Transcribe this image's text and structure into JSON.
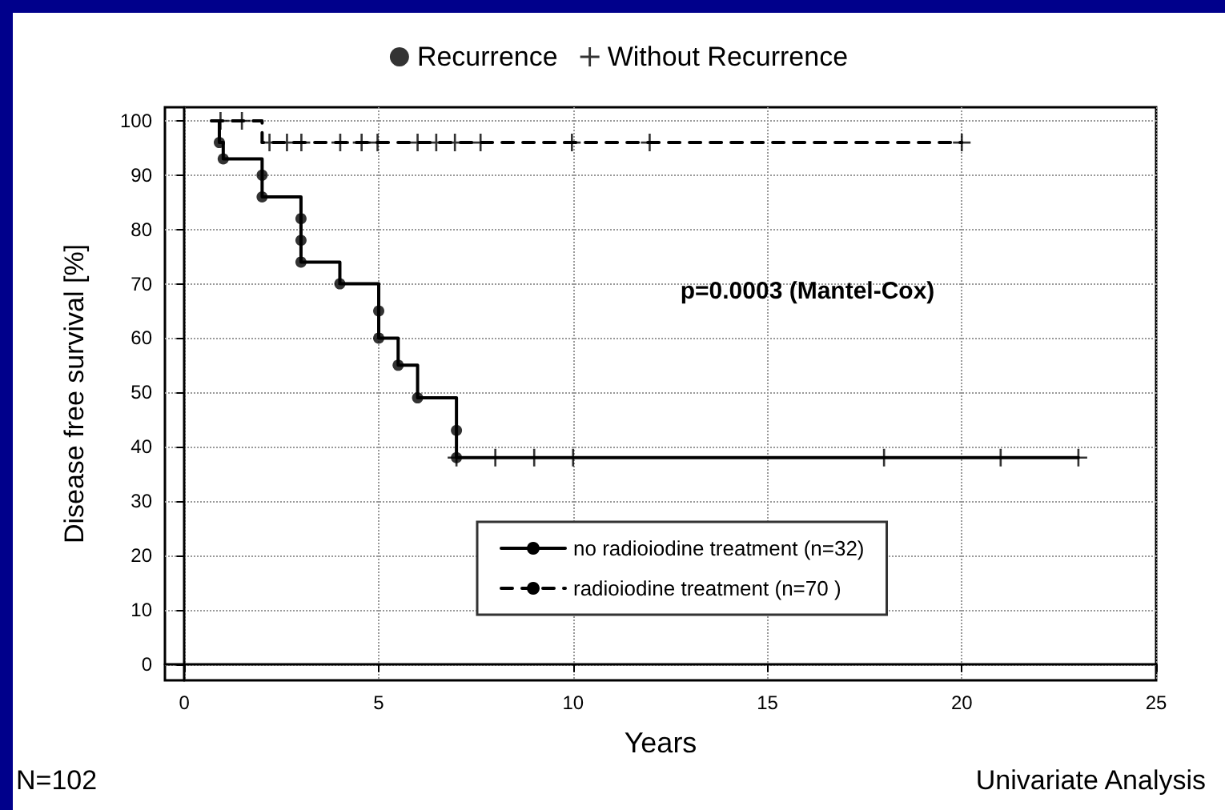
{
  "chart_data": {
    "type": "step",
    "xlabel": "Years",
    "ylabel": "Disease free survival [%]",
    "annotations": [
      "p=0.0003 (Mantel-Cox)",
      "N=102",
      "Univariate Analysis"
    ],
    "xlim": [
      -0.5,
      25
    ],
    "xticks": [
      0,
      5,
      10,
      15,
      20,
      25
    ],
    "ylim": [
      -3,
      102.5
    ],
    "yticks": [
      0,
      10,
      20,
      30,
      40,
      50,
      60,
      70,
      80,
      90,
      100
    ],
    "grid": true,
    "legend": "top",
    "series": [
      {
        "name": "no radioiodine treatment (n=32)",
        "color": "#000000",
        "line_style": "solid",
        "marker": "none",
        "x": [
          0.7,
          0.9,
          1,
          2,
          3,
          4,
          5,
          5.5,
          6,
          7,
          23
        ],
        "values": [
          100,
          96,
          93,
          86,
          74,
          70,
          60,
          55,
          49,
          38,
          38
        ]
      },
      {
        "name": "radioiodine treatment (n=70 )",
        "color": "#000000",
        "line_style": "dashed",
        "marker": "none",
        "x": [
          0.7,
          2,
          20
        ],
        "values": [
          100,
          96,
          96
        ]
      },
      {
        "name": "Recurrence",
        "type": "scatter",
        "color": "#000000",
        "marker": "circle",
        "x": [
          0.9,
          1,
          2,
          2,
          3,
          3,
          3,
          4,
          5,
          5,
          5.5,
          6,
          7,
          7
        ],
        "values": [
          96,
          93,
          90,
          86,
          82,
          78,
          74,
          70,
          65,
          60,
          55,
          49,
          43,
          38
        ]
      },
      {
        "name": "Without Recurrence",
        "type": "scatter",
        "color": "#000000",
        "marker": "cross",
        "x": [
          0.93,
          1.48,
          2.19,
          2.64,
          3.01,
          4.01,
          4.56,
          4.97,
          6,
          6.48,
          6.96,
          7.62,
          9.97,
          11.97,
          20,
          7,
          8,
          9,
          10,
          18,
          21,
          23
        ],
        "values": [
          100,
          100,
          96,
          96,
          96,
          96,
          96,
          96,
          96,
          96,
          96,
          96,
          96,
          96,
          96,
          38,
          38,
          38,
          38,
          38,
          38,
          38
        ]
      }
    ]
  }
}
